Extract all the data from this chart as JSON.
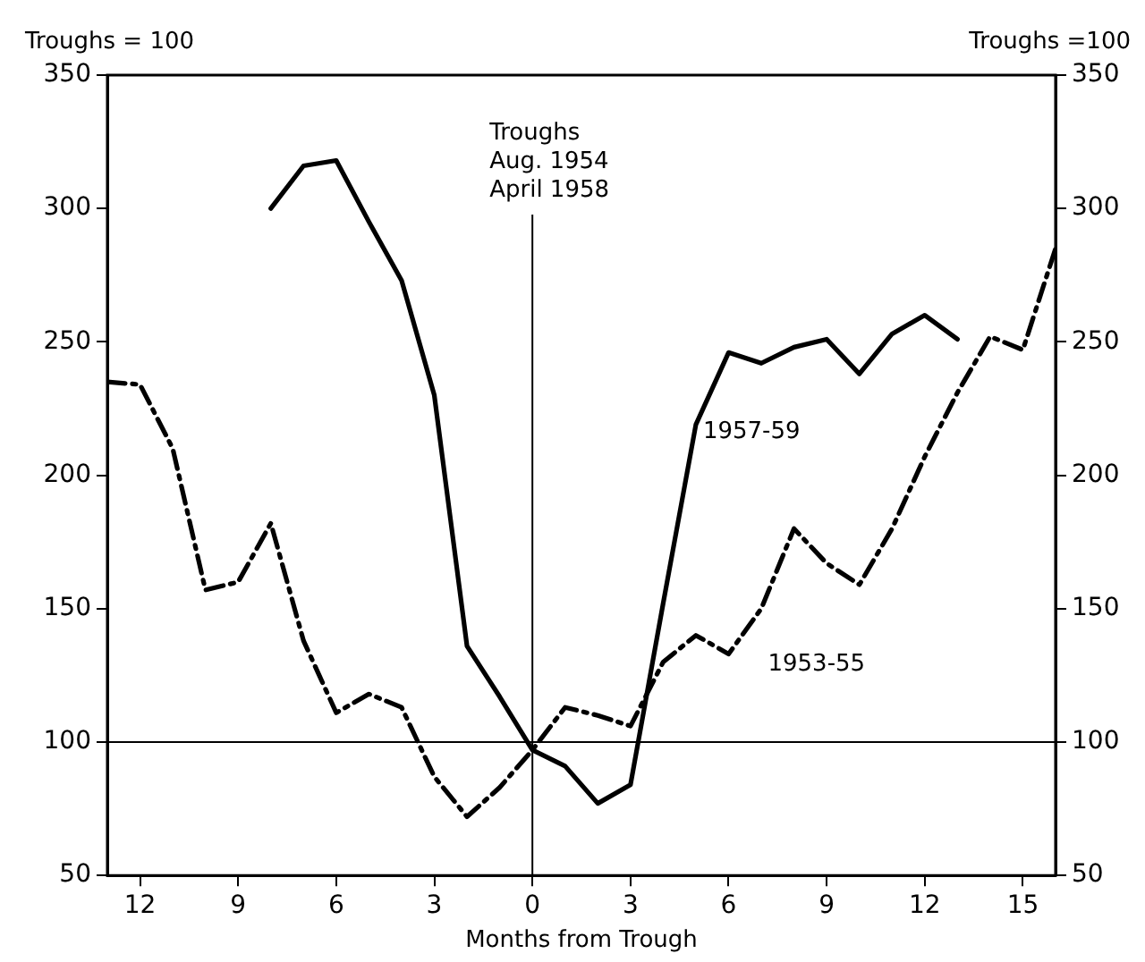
{
  "chart_data": {
    "type": "line",
    "xlabel": "Months from Trough",
    "ylabel": "Troughs = 100",
    "y2label": "Troughs =100",
    "xlim": [
      -13,
      16
    ],
    "xticks": [
      {
        "value": -12,
        "label": "12"
      },
      {
        "value": -9,
        "label": "9"
      },
      {
        "value": -6,
        "label": "6"
      },
      {
        "value": -3,
        "label": "3"
      },
      0,
      3,
      6,
      9,
      12,
      15
    ],
    "ylim": [
      50,
      350
    ],
    "yticks": [
      50,
      100,
      150,
      200,
      250,
      300,
      350
    ],
    "y2lim": [
      50,
      350
    ],
    "y2ticks": [
      50,
      100,
      150,
      200,
      250,
      300,
      350
    ],
    "grid": false,
    "legend": false,
    "marker": "none",
    "ref_lines": [
      {
        "axis": "x",
        "value": 0,
        "label": "Troughs\nAug. 1954\nApril 1958"
      },
      {
        "axis": "y",
        "value": 100
      }
    ],
    "series": [
      {
        "name": "1957-59",
        "color": "#000000",
        "line_style": "solid",
        "x": [
          -8,
          -7,
          -6,
          -5,
          -4,
          -3,
          -2,
          -1,
          0,
          1,
          2,
          3,
          4,
          5,
          6,
          7,
          8,
          9,
          10,
          11,
          12,
          13
        ],
        "values": [
          300,
          316,
          318,
          295,
          273,
          230,
          136,
          117,
          97,
          91,
          77,
          84,
          152,
          219,
          246,
          242,
          248,
          251,
          238,
          253,
          260,
          251
        ]
      },
      {
        "name": "1953-55",
        "color": "#000000",
        "line_style": "dashed",
        "x": [
          -13,
          -12,
          -11,
          -10,
          -9,
          -8,
          -7,
          -6,
          -5,
          -4,
          -3,
          -2,
          -1,
          0,
          1,
          2,
          3,
          4,
          5,
          6,
          7,
          8,
          9,
          10,
          11,
          12,
          13,
          14,
          15,
          16
        ],
        "values": [
          235,
          234,
          210,
          157,
          160,
          182,
          138,
          111,
          118,
          113,
          87,
          72,
          83,
          97,
          113,
          110,
          106,
          130,
          140,
          133,
          150,
          180,
          167,
          159,
          180,
          207,
          231,
          252,
          247,
          285
        ]
      }
    ]
  }
}
